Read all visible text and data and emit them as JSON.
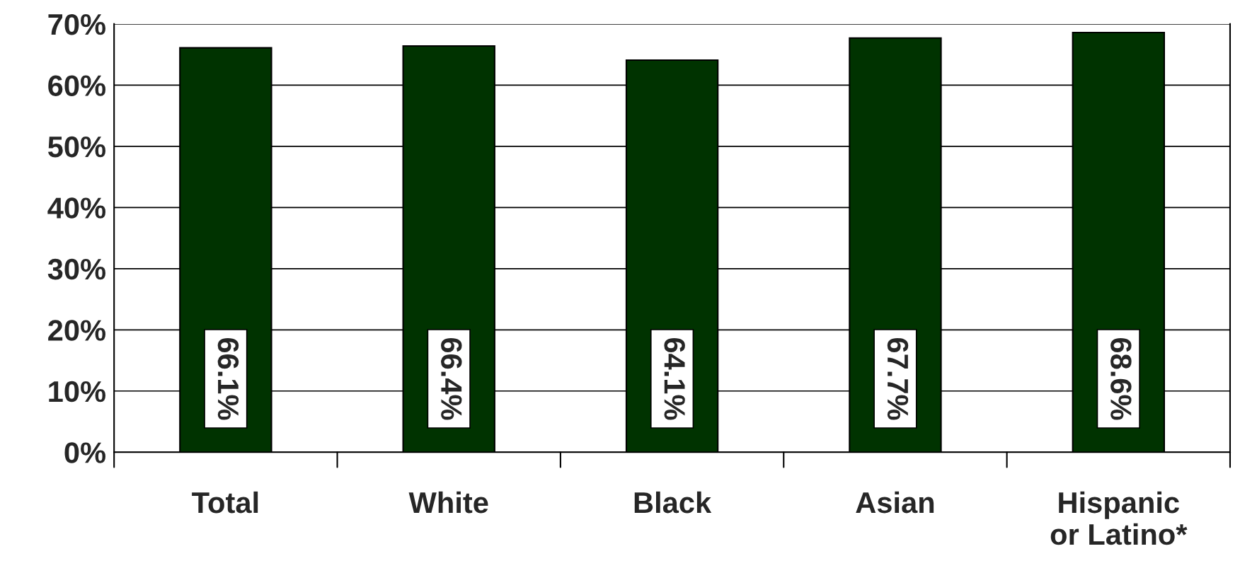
{
  "chart_data": {
    "type": "bar",
    "categories": [
      "Total",
      "White",
      "Black",
      "Asian",
      "Hispanic\nor Latino*"
    ],
    "values": [
      66.1,
      66.4,
      64.1,
      67.7,
      68.6
    ],
    "value_labels": [
      "66.1%",
      "66.4%",
      "64.1%",
      "67.7%",
      "68.6%"
    ],
    "color": "#003300",
    "ylim": [
      0,
      70
    ],
    "yticks": [
      {
        "value": 0,
        "label": "0%"
      },
      {
        "value": 10,
        "label": "10%"
      },
      {
        "value": 20,
        "label": "20%"
      },
      {
        "value": 30,
        "label": "30%"
      },
      {
        "value": 40,
        "label": "40%"
      },
      {
        "value": 50,
        "label": "50%"
      },
      {
        "value": 60,
        "label": "60%"
      },
      {
        "value": 70,
        "label": "70%"
      }
    ],
    "grid": "y"
  }
}
